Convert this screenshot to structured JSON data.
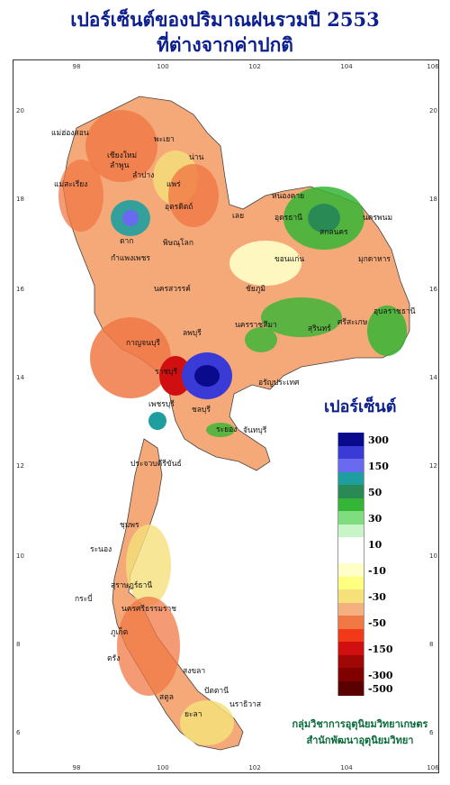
{
  "title": {
    "line1": "เปอร์เซ็นต์ของปริมาณฝนรวมปี  2553",
    "line2": "ที่ต่างจากค่าปกติ"
  },
  "axes": {
    "lon_ticks": [
      "98",
      "100",
      "102",
      "104",
      "106"
    ],
    "lat_ticks": [
      "20",
      "18",
      "16",
      "14",
      "12",
      "10",
      "8",
      "6"
    ]
  },
  "legend": {
    "title": "เปอร์เซ็นต์",
    "items": [
      {
        "color": "#0a0a8c",
        "label": "300"
      },
      {
        "color": "#3a3ad6",
        "label": ""
      },
      {
        "color": "#6a6af0",
        "label": "150"
      },
      {
        "color": "#1e9e9e",
        "label": ""
      },
      {
        "color": "#2a8a55",
        "label": "50"
      },
      {
        "color": "#35b535",
        "label": ""
      },
      {
        "color": "#7fdc7f",
        "label": "30"
      },
      {
        "color": "#c8f5c8",
        "label": ""
      },
      {
        "color": "#ffffff",
        "label": "10"
      },
      {
        "color": "#ffffff",
        "label": ""
      },
      {
        "color": "#ffffc8",
        "label": "-10"
      },
      {
        "color": "#ffff80",
        "label": ""
      },
      {
        "color": "#f5e07a",
        "label": "-30"
      },
      {
        "color": "#f5b080",
        "label": ""
      },
      {
        "color": "#f07845",
        "label": "-50"
      },
      {
        "color": "#f03a1a",
        "label": ""
      },
      {
        "color": "#d01010",
        "label": "-150"
      },
      {
        "color": "#a00808",
        "label": ""
      },
      {
        "color": "#800000",
        "label": "-300"
      },
      {
        "color": "#5a0000",
        "label": "-500"
      }
    ]
  },
  "cities": [
    {
      "name": "แม่ฮ่องสอน"
    },
    {
      "name": "เชียงใหม่"
    },
    {
      "name": "ลำพูน"
    },
    {
      "name": "ลำปาง"
    },
    {
      "name": "พะเยา"
    },
    {
      "name": "น่าน"
    },
    {
      "name": "แพร่"
    },
    {
      "name": "แม่สะเรียง"
    },
    {
      "name": "อุตรดิตถ์"
    },
    {
      "name": "ตาก"
    },
    {
      "name": "พิษณุโลก"
    },
    {
      "name": "กำแพงเพชร"
    },
    {
      "name": "เลย"
    },
    {
      "name": "หนองคาย"
    },
    {
      "name": "อุดรธานี"
    },
    {
      "name": "สกลนคร"
    },
    {
      "name": "นครพนม"
    },
    {
      "name": "มุกดาหาร"
    },
    {
      "name": "ขอนแก่น"
    },
    {
      "name": "นครสวรรค์"
    },
    {
      "name": "ชัยภูมิ"
    },
    {
      "name": "ลพบุรี"
    },
    {
      "name": "นครราชสีมา"
    },
    {
      "name": "สุรินทร์"
    },
    {
      "name": "อุบลราชธานี"
    },
    {
      "name": "ศรีสะเกษ"
    },
    {
      "name": "กาญจนบุรี"
    },
    {
      "name": "ราชบุรี"
    },
    {
      "name": "เพชรบุรี"
    },
    {
      "name": "ชลบุรี"
    },
    {
      "name": "ระยอง"
    },
    {
      "name": "จันทบุรี"
    },
    {
      "name": "อรัญประเทศ"
    },
    {
      "name": "ประจวบคีรีขันธ์"
    },
    {
      "name": "ชุมพร"
    },
    {
      "name": "ระนอง"
    },
    {
      "name": "สุราษฎร์ธานี"
    },
    {
      "name": "นครศรีธรรมราช"
    },
    {
      "name": "กระบี่"
    },
    {
      "name": "ภูเก็ต"
    },
    {
      "name": "ตรัง"
    },
    {
      "name": "สงขลา"
    },
    {
      "name": "ปัตตานี"
    },
    {
      "name": "นราธิวาส"
    },
    {
      "name": "สตูล"
    },
    {
      "name": "ยะลา"
    }
  ],
  "credit": {
    "line1": "กลุ่มวิชาการอุตุนิยมวิทยาเกษตร",
    "line2": "สำนักพัฒนาอุตุนิยมวิทยา"
  }
}
